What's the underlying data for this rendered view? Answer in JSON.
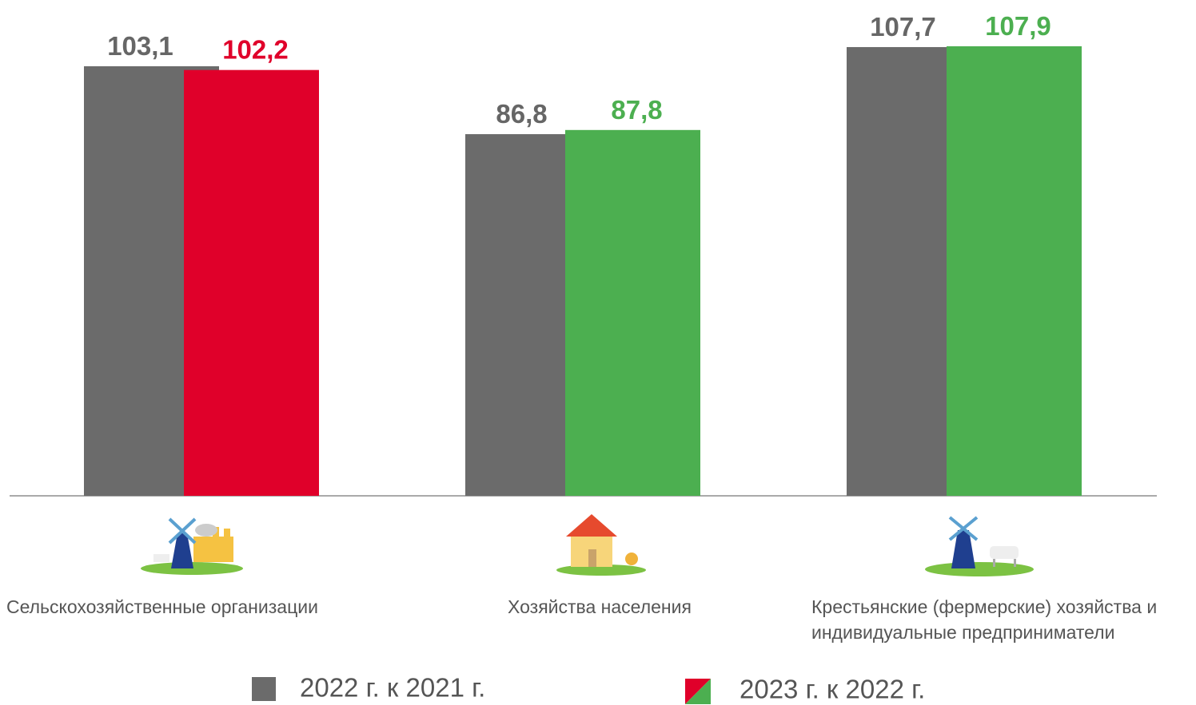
{
  "chart_data": {
    "type": "bar",
    "categories": [
      "Сельскохозяйственные организации",
      "Хозяйства населения",
      "Крестьянские (фермерские) хозяйства и индивидуальные предприниматели"
    ],
    "series": [
      {
        "name": "2022 г. к 2021 г.",
        "color": "#6b6b6b",
        "values": [
          103.1,
          86.8,
          107.7
        ],
        "value_labels": [
          "103,1",
          "86,8",
          "107,7"
        ]
      },
      {
        "name": "2023 г. к 2022 г.",
        "colors": [
          "#e0002a",
          "#4caf50",
          "#4caf50"
        ],
        "values": [
          102.2,
          87.8,
          107.9
        ],
        "value_labels": [
          "102,2",
          "87,8",
          "107,9"
        ]
      }
    ],
    "ylim": [
      0,
      119
    ]
  }
}
